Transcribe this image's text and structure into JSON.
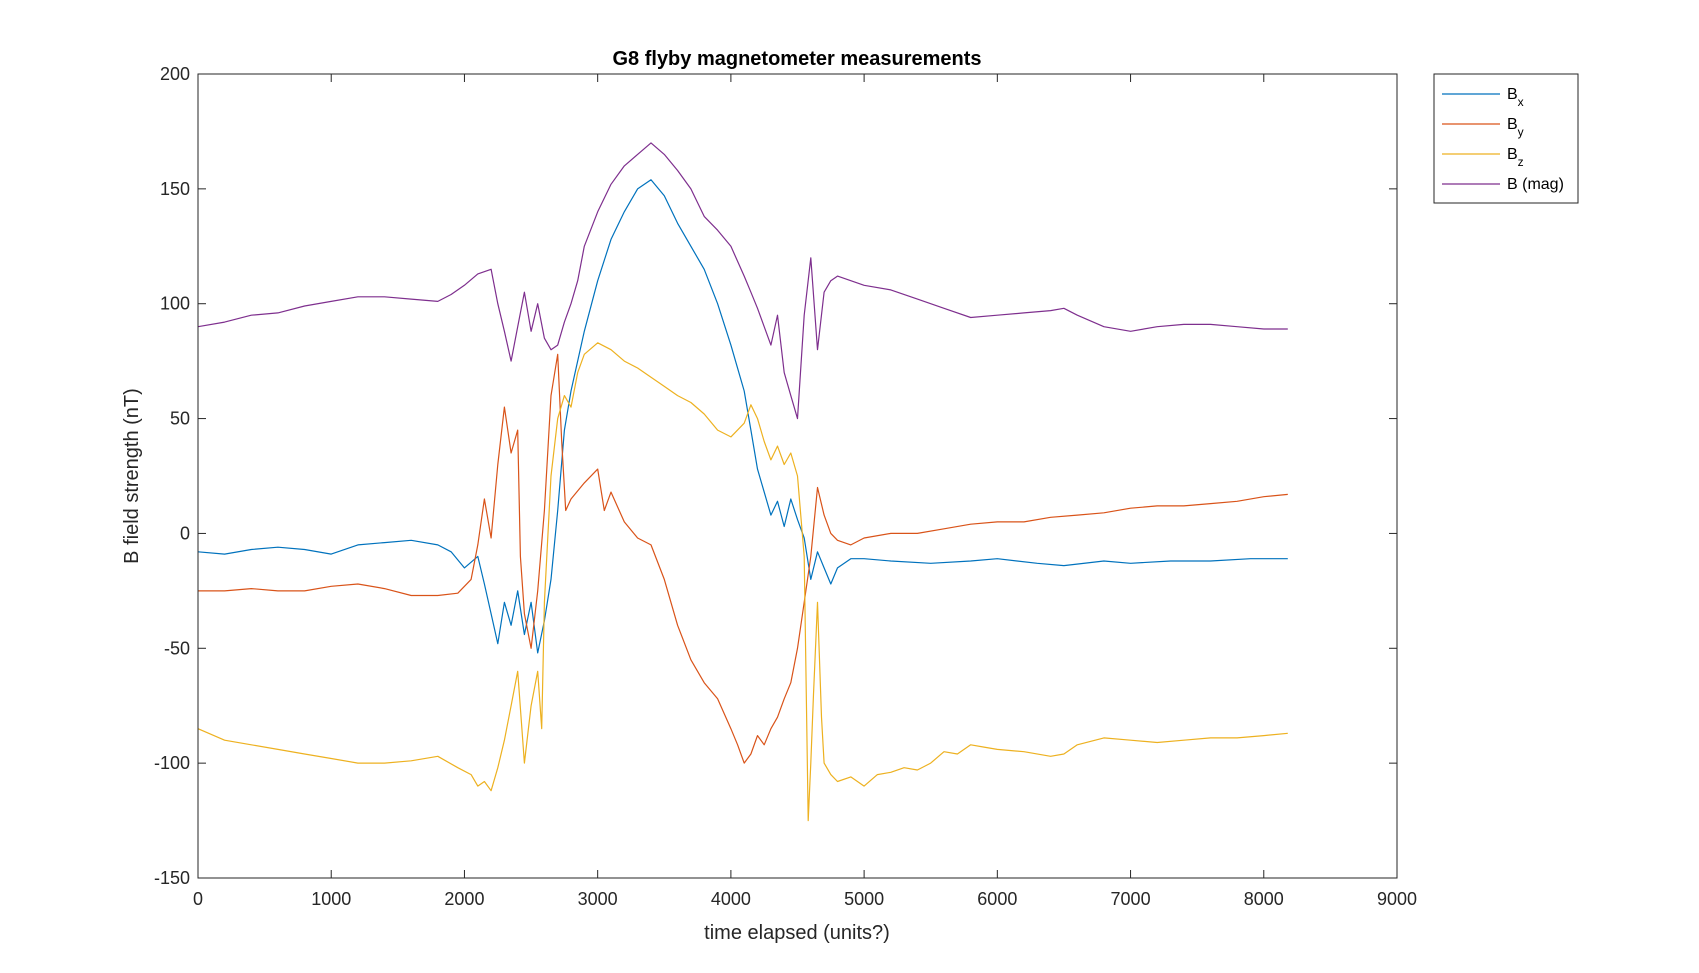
{
  "chart_data": {
    "type": "line",
    "title": "G8 flyby magnetometer measurements",
    "xlabel": "time elapsed (units?)",
    "ylabel": "B field strength (nT)",
    "xlim": [
      0,
      9000
    ],
    "ylim": [
      -150,
      200
    ],
    "xticks": [
      0,
      1000,
      2000,
      3000,
      4000,
      5000,
      6000,
      7000,
      8000,
      9000
    ],
    "xtick_labels": [
      "0",
      "1000",
      "2000",
      "3000",
      "4000",
      "5000",
      "6000",
      "7000",
      "8000",
      "9000"
    ],
    "yticks": [
      -150,
      -100,
      -50,
      0,
      50,
      100,
      150,
      200
    ],
    "ytick_labels": [
      "-150",
      "-100",
      "-50",
      "0",
      "50",
      "100",
      "150",
      "200"
    ],
    "grid": false,
    "legend_position": "outside-top-right",
    "series": [
      {
        "name": "B_x",
        "legend": {
          "base": "B",
          "sub": "x"
        },
        "color": "#0072BD",
        "points": [
          [
            0,
            -8
          ],
          [
            200,
            -9
          ],
          [
            400,
            -7
          ],
          [
            600,
            -6
          ],
          [
            800,
            -7
          ],
          [
            1000,
            -9
          ],
          [
            1200,
            -5
          ],
          [
            1400,
            -4
          ],
          [
            1600,
            -3
          ],
          [
            1800,
            -5
          ],
          [
            1900,
            -8
          ],
          [
            2000,
            -15
          ],
          [
            2100,
            -10
          ],
          [
            2150,
            -22
          ],
          [
            2200,
            -35
          ],
          [
            2250,
            -48
          ],
          [
            2300,
            -30
          ],
          [
            2350,
            -40
          ],
          [
            2400,
            -25
          ],
          [
            2450,
            -44
          ],
          [
            2500,
            -30
          ],
          [
            2550,
            -52
          ],
          [
            2600,
            -38
          ],
          [
            2650,
            -20
          ],
          [
            2700,
            10
          ],
          [
            2750,
            45
          ],
          [
            2800,
            62
          ],
          [
            2900,
            88
          ],
          [
            3000,
            110
          ],
          [
            3100,
            128
          ],
          [
            3200,
            140
          ],
          [
            3300,
            150
          ],
          [
            3400,
            154
          ],
          [
            3500,
            147
          ],
          [
            3600,
            135
          ],
          [
            3700,
            125
          ],
          [
            3800,
            115
          ],
          [
            3900,
            100
          ],
          [
            4000,
            82
          ],
          [
            4100,
            62
          ],
          [
            4150,
            45
          ],
          [
            4200,
            28
          ],
          [
            4250,
            18
          ],
          [
            4300,
            8
          ],
          [
            4350,
            14
          ],
          [
            4400,
            3
          ],
          [
            4450,
            15
          ],
          [
            4500,
            6
          ],
          [
            4550,
            -2
          ],
          [
            4600,
            -20
          ],
          [
            4650,
            -8
          ],
          [
            4700,
            -15
          ],
          [
            4750,
            -22
          ],
          [
            4800,
            -15
          ],
          [
            4900,
            -11
          ],
          [
            5000,
            -11
          ],
          [
            5200,
            -12
          ],
          [
            5500,
            -13
          ],
          [
            5800,
            -12
          ],
          [
            6000,
            -11
          ],
          [
            6300,
            -13
          ],
          [
            6500,
            -14
          ],
          [
            6800,
            -12
          ],
          [
            7000,
            -13
          ],
          [
            7300,
            -12
          ],
          [
            7600,
            -12
          ],
          [
            7900,
            -11
          ],
          [
            8180,
            -11
          ]
        ]
      },
      {
        "name": "B_y",
        "legend": {
          "base": "B",
          "sub": "y"
        },
        "color": "#D95319",
        "points": [
          [
            0,
            -25
          ],
          [
            200,
            -25
          ],
          [
            400,
            -24
          ],
          [
            600,
            -25
          ],
          [
            800,
            -25
          ],
          [
            1000,
            -23
          ],
          [
            1200,
            -22
          ],
          [
            1400,
            -24
          ],
          [
            1600,
            -27
          ],
          [
            1800,
            -27
          ],
          [
            1950,
            -26
          ],
          [
            2050,
            -20
          ],
          [
            2100,
            -5
          ],
          [
            2150,
            15
          ],
          [
            2200,
            -2
          ],
          [
            2250,
            30
          ],
          [
            2300,
            55
          ],
          [
            2350,
            35
          ],
          [
            2400,
            45
          ],
          [
            2420,
            -10
          ],
          [
            2450,
            -35
          ],
          [
            2500,
            -50
          ],
          [
            2550,
            -25
          ],
          [
            2600,
            10
          ],
          [
            2650,
            60
          ],
          [
            2700,
            78
          ],
          [
            2730,
            40
          ],
          [
            2760,
            10
          ],
          [
            2800,
            15
          ],
          [
            2900,
            22
          ],
          [
            3000,
            28
          ],
          [
            3050,
            10
          ],
          [
            3100,
            18
          ],
          [
            3200,
            5
          ],
          [
            3300,
            -2
          ],
          [
            3400,
            -5
          ],
          [
            3500,
            -20
          ],
          [
            3600,
            -40
          ],
          [
            3700,
            -55
          ],
          [
            3800,
            -65
          ],
          [
            3900,
            -72
          ],
          [
            4000,
            -85
          ],
          [
            4050,
            -92
          ],
          [
            4100,
            -100
          ],
          [
            4150,
            -96
          ],
          [
            4200,
            -88
          ],
          [
            4250,
            -92
          ],
          [
            4300,
            -85
          ],
          [
            4350,
            -80
          ],
          [
            4400,
            -72
          ],
          [
            4450,
            -65
          ],
          [
            4500,
            -50
          ],
          [
            4550,
            -30
          ],
          [
            4600,
            -10
          ],
          [
            4650,
            20
          ],
          [
            4700,
            8
          ],
          [
            4750,
            0
          ],
          [
            4800,
            -3
          ],
          [
            4900,
            -5
          ],
          [
            5000,
            -2
          ],
          [
            5200,
            0
          ],
          [
            5400,
            0
          ],
          [
            5600,
            2
          ],
          [
            5800,
            4
          ],
          [
            6000,
            5
          ],
          [
            6200,
            5
          ],
          [
            6400,
            7
          ],
          [
            6600,
            8
          ],
          [
            6800,
            9
          ],
          [
            7000,
            11
          ],
          [
            7200,
            12
          ],
          [
            7400,
            12
          ],
          [
            7600,
            13
          ],
          [
            7800,
            14
          ],
          [
            8000,
            16
          ],
          [
            8180,
            17
          ]
        ]
      },
      {
        "name": "B_z",
        "legend": {
          "base": "B",
          "sub": "z"
        },
        "color": "#EDB120",
        "points": [
          [
            0,
            -85
          ],
          [
            200,
            -90
          ],
          [
            400,
            -92
          ],
          [
            600,
            -94
          ],
          [
            800,
            -96
          ],
          [
            1000,
            -98
          ],
          [
            1200,
            -100
          ],
          [
            1400,
            -100
          ],
          [
            1600,
            -99
          ],
          [
            1800,
            -97
          ],
          [
            1950,
            -102
          ],
          [
            2050,
            -105
          ],
          [
            2100,
            -110
          ],
          [
            2150,
            -108
          ],
          [
            2200,
            -112
          ],
          [
            2250,
            -102
          ],
          [
            2300,
            -90
          ],
          [
            2350,
            -75
          ],
          [
            2400,
            -60
          ],
          [
            2450,
            -100
          ],
          [
            2500,
            -75
          ],
          [
            2550,
            -60
          ],
          [
            2580,
            -85
          ],
          [
            2600,
            -30
          ],
          [
            2650,
            25
          ],
          [
            2700,
            50
          ],
          [
            2750,
            60
          ],
          [
            2800,
            55
          ],
          [
            2850,
            70
          ],
          [
            2900,
            78
          ],
          [
            3000,
            83
          ],
          [
            3100,
            80
          ],
          [
            3200,
            75
          ],
          [
            3300,
            72
          ],
          [
            3400,
            68
          ],
          [
            3500,
            64
          ],
          [
            3600,
            60
          ],
          [
            3700,
            57
          ],
          [
            3800,
            52
          ],
          [
            3900,
            45
          ],
          [
            4000,
            42
          ],
          [
            4100,
            48
          ],
          [
            4150,
            56
          ],
          [
            4200,
            50
          ],
          [
            4250,
            40
          ],
          [
            4300,
            32
          ],
          [
            4350,
            38
          ],
          [
            4400,
            30
          ],
          [
            4450,
            35
          ],
          [
            4500,
            25
          ],
          [
            4550,
            -10
          ],
          [
            4580,
            -125
          ],
          [
            4600,
            -100
          ],
          [
            4620,
            -70
          ],
          [
            4650,
            -30
          ],
          [
            4680,
            -80
          ],
          [
            4700,
            -100
          ],
          [
            4750,
            -105
          ],
          [
            4800,
            -108
          ],
          [
            4900,
            -106
          ],
          [
            5000,
            -110
          ],
          [
            5100,
            -105
          ],
          [
            5200,
            -104
          ],
          [
            5300,
            -102
          ],
          [
            5400,
            -103
          ],
          [
            5500,
            -100
          ],
          [
            5600,
            -95
          ],
          [
            5700,
            -96
          ],
          [
            5800,
            -92
          ],
          [
            5900,
            -93
          ],
          [
            6000,
            -94
          ],
          [
            6200,
            -95
          ],
          [
            6400,
            -97
          ],
          [
            6500,
            -96
          ],
          [
            6600,
            -92
          ],
          [
            6800,
            -89
          ],
          [
            7000,
            -90
          ],
          [
            7200,
            -91
          ],
          [
            7400,
            -90
          ],
          [
            7600,
            -89
          ],
          [
            7800,
            -89
          ],
          [
            8000,
            -88
          ],
          [
            8180,
            -87
          ]
        ]
      },
      {
        "name": "B (mag)",
        "legend": {
          "base": "B (mag)",
          "sub": ""
        },
        "color": "#7E2F8E",
        "points": [
          [
            0,
            90
          ],
          [
            200,
            92
          ],
          [
            400,
            95
          ],
          [
            600,
            96
          ],
          [
            800,
            99
          ],
          [
            1000,
            101
          ],
          [
            1200,
            103
          ],
          [
            1400,
            103
          ],
          [
            1600,
            102
          ],
          [
            1800,
            101
          ],
          [
            1900,
            104
          ],
          [
            2000,
            108
          ],
          [
            2100,
            113
          ],
          [
            2200,
            115
          ],
          [
            2250,
            100
          ],
          [
            2300,
            88
          ],
          [
            2350,
            75
          ],
          [
            2400,
            90
          ],
          [
            2450,
            105
          ],
          [
            2500,
            88
          ],
          [
            2550,
            100
          ],
          [
            2600,
            85
          ],
          [
            2650,
            80
          ],
          [
            2700,
            82
          ],
          [
            2750,
            92
          ],
          [
            2800,
            100
          ],
          [
            2850,
            110
          ],
          [
            2900,
            125
          ],
          [
            3000,
            140
          ],
          [
            3100,
            152
          ],
          [
            3200,
            160
          ],
          [
            3300,
            165
          ],
          [
            3400,
            170
          ],
          [
            3500,
            165
          ],
          [
            3600,
            158
          ],
          [
            3700,
            150
          ],
          [
            3800,
            138
          ],
          [
            3900,
            132
          ],
          [
            4000,
            125
          ],
          [
            4100,
            112
          ],
          [
            4150,
            105
          ],
          [
            4200,
            98
          ],
          [
            4250,
            90
          ],
          [
            4300,
            82
          ],
          [
            4350,
            95
          ],
          [
            4400,
            70
          ],
          [
            4450,
            60
          ],
          [
            4500,
            50
          ],
          [
            4550,
            95
          ],
          [
            4600,
            120
          ],
          [
            4650,
            80
          ],
          [
            4700,
            105
          ],
          [
            4750,
            110
          ],
          [
            4800,
            112
          ],
          [
            4900,
            110
          ],
          [
            5000,
            108
          ],
          [
            5200,
            106
          ],
          [
            5400,
            102
          ],
          [
            5600,
            98
          ],
          [
            5800,
            94
          ],
          [
            6000,
            95
          ],
          [
            6200,
            96
          ],
          [
            6400,
            97
          ],
          [
            6500,
            98
          ],
          [
            6600,
            95
          ],
          [
            6800,
            90
          ],
          [
            7000,
            88
          ],
          [
            7200,
            90
          ],
          [
            7400,
            91
          ],
          [
            7600,
            91
          ],
          [
            7800,
            90
          ],
          [
            8000,
            89
          ],
          [
            8180,
            89
          ]
        ]
      }
    ]
  }
}
